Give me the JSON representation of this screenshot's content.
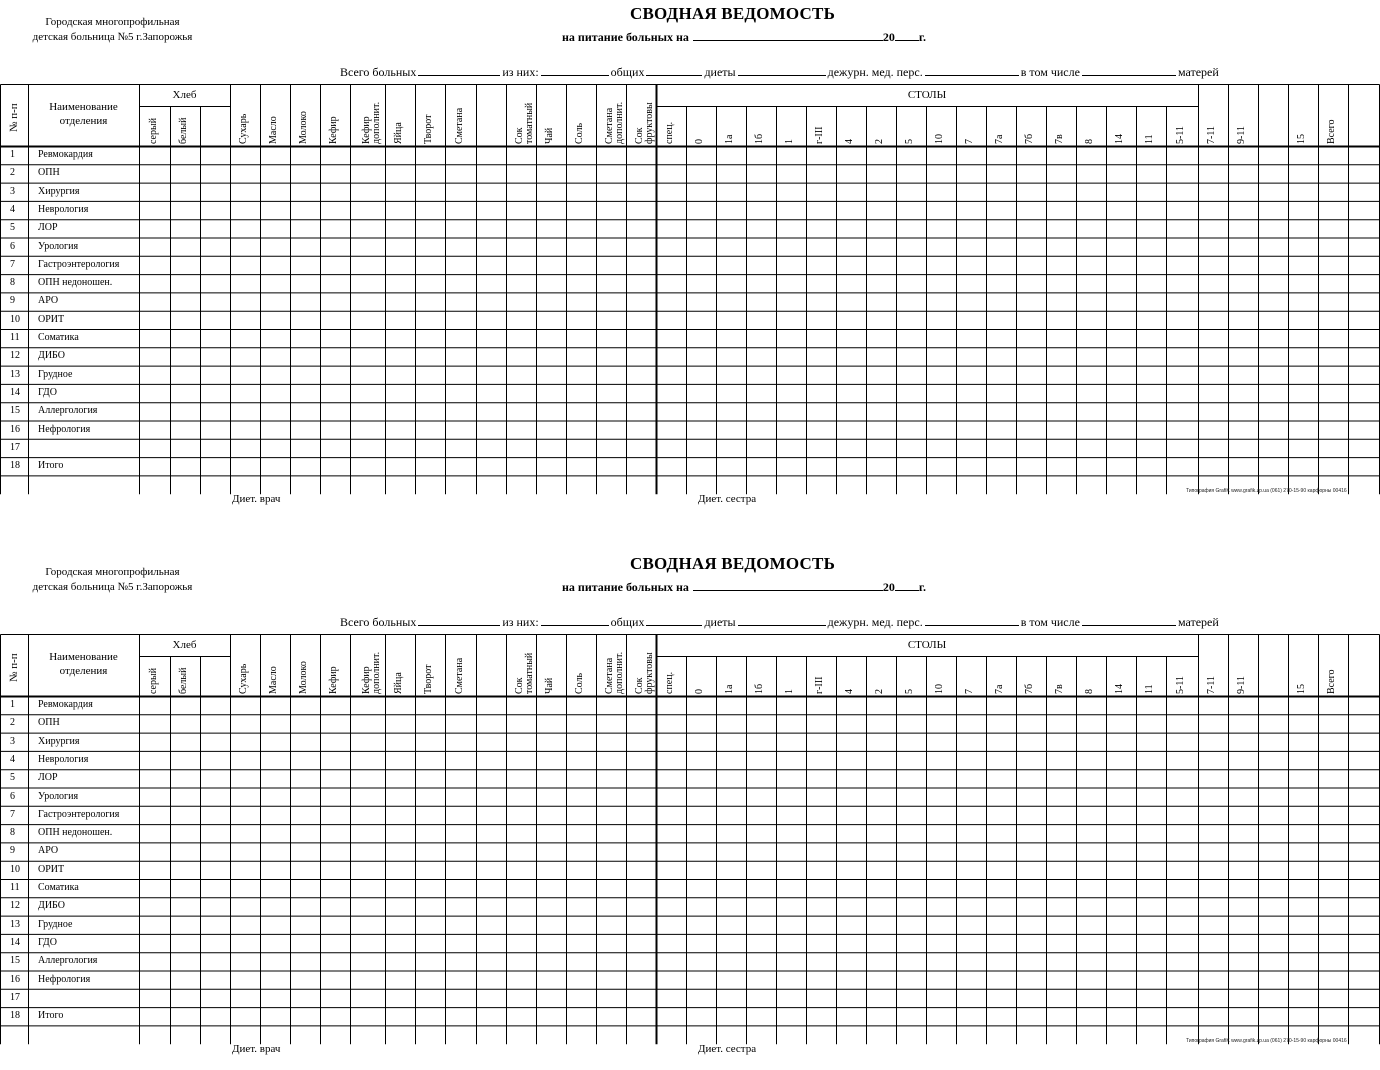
{
  "hospital": {
    "line1": "Городская многопрофильная",
    "line2": "детская больница №5 г.Запорожья"
  },
  "title": "СВОДНАЯ ВЕДОМОСТЬ",
  "subtitle": {
    "prefix": "на питание больных на",
    "year_prefix": "20",
    "year_suffix": "г."
  },
  "totals": {
    "total_patients": "Всего больных",
    "of_them": "из них:",
    "general": "общих",
    "diets": "диеты",
    "duty_staff": "дежурн. мед. перс.",
    "including": "в том числе",
    "mothers": "матерей"
  },
  "table": {
    "num_header": "№ п-п",
    "dept_header_1": "Наименование",
    "dept_header_2": "отделения",
    "bread_group": "Хлеб",
    "bread_cols": [
      "серый",
      "белый"
    ],
    "food_cols": [
      "Сухарь",
      "Масло",
      "Молоко",
      "Кефир",
      "Кефир дополнит.",
      "Яйца",
      "Творот",
      "Сметана",
      "",
      "Сок томатный",
      "Чай",
      "Соль",
      "Сметана дополнит.",
      "Сок фруктовы"
    ],
    "tables_group": "СТОЛЫ",
    "table_cols": [
      "спец.",
      "0",
      "1а",
      "1б",
      "1",
      "г-III",
      "4",
      "2",
      "5",
      "10",
      "7",
      "7а",
      "7б",
      "7в",
      "8",
      "14",
      "11",
      "5-11"
    ],
    "extra_cols": [
      "7-11",
      "9-11",
      "",
      "15",
      "Всего"
    ],
    "rows": [
      {
        "num": "1",
        "dept": "Ревмокардия"
      },
      {
        "num": "2",
        "dept": "ОПН"
      },
      {
        "num": "3",
        "dept": "Хирургия"
      },
      {
        "num": "4",
        "dept": "Неврология"
      },
      {
        "num": "5",
        "dept": "ЛОР"
      },
      {
        "num": "6",
        "dept": "Урология"
      },
      {
        "num": "7",
        "dept": "Гастроэнтерология"
      },
      {
        "num": "8",
        "dept": "ОПН недоношен."
      },
      {
        "num": "9",
        "dept": "АРО"
      },
      {
        "num": "10",
        "dept": "ОРИТ"
      },
      {
        "num": "11",
        "dept": "Соматика"
      },
      {
        "num": "12",
        "dept": "ДИБО"
      },
      {
        "num": "13",
        "dept": "Грудное"
      },
      {
        "num": "14",
        "dept": "ГДО"
      },
      {
        "num": "15",
        "dept": "Аллергология"
      },
      {
        "num": "16",
        "dept": "Нефрология"
      },
      {
        "num": "17",
        "dept": ""
      },
      {
        "num": "18",
        "dept": "Итого"
      }
    ]
  },
  "signatures": {
    "doctor": "Диет. врач",
    "nurse": "Диет. сестра"
  },
  "print_info": "Типография GrafiK www.grafik.zp.ua (061) 270-15-90 карфорны 00416"
}
